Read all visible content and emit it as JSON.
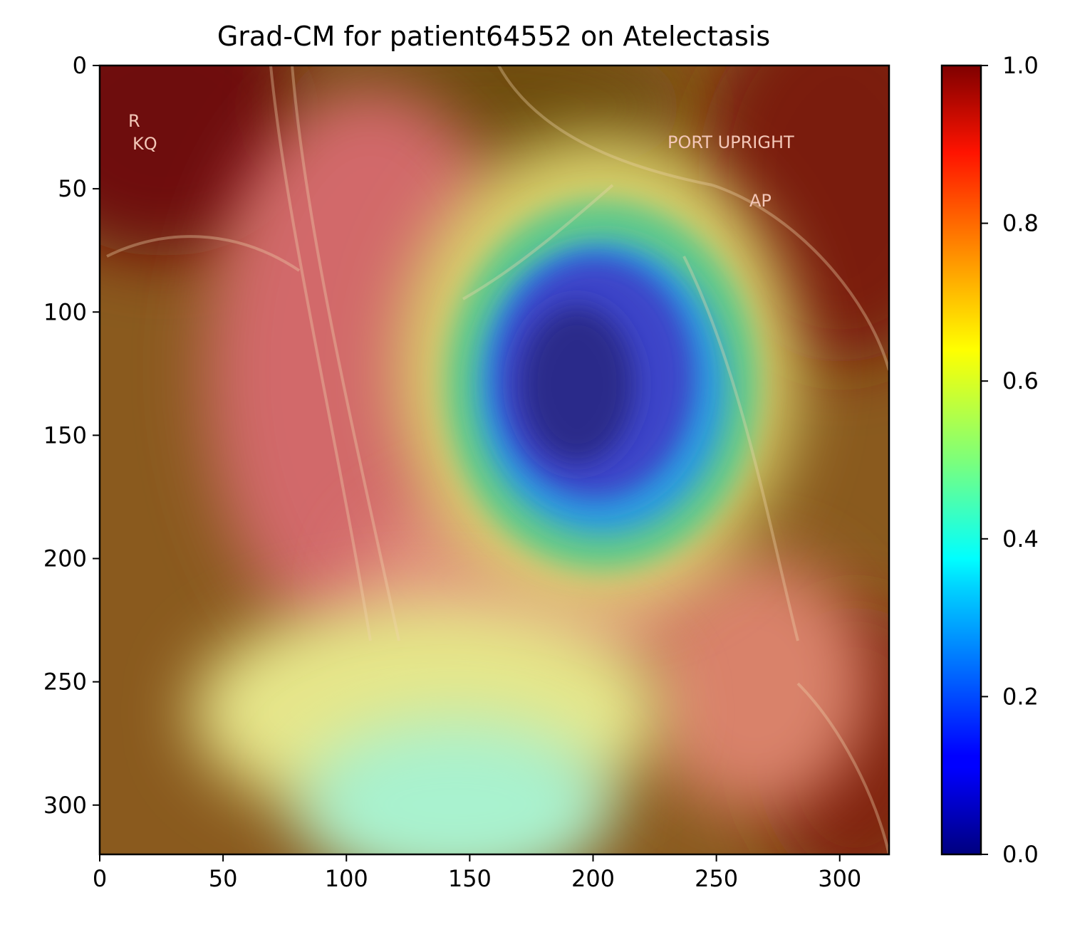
{
  "chart_data": {
    "type": "heatmap",
    "title": "Grad-CM for patient64552 on Atelectasis",
    "xlabel": "",
    "ylabel": "",
    "xlim": [
      0,
      320
    ],
    "ylim": [
      320,
      0
    ],
    "x_ticks": [
      "0",
      "50",
      "100",
      "150",
      "200",
      "250",
      "300"
    ],
    "y_ticks": [
      "0",
      "50",
      "100",
      "150",
      "200",
      "250",
      "300"
    ],
    "colorbar": {
      "colormap": "jet",
      "range": [
        0.0,
        1.0
      ],
      "ticks": [
        "0.0",
        "0.2",
        "0.4",
        "0.6",
        "0.8",
        "1.0"
      ]
    },
    "image_annotations": {
      "marker_letter": "R",
      "marker_sub": "KQ",
      "port_label": "PORT UPRIGHT",
      "view_label": "AP"
    },
    "activation_regions": [
      {
        "description": "low activation (blue)",
        "center": [
          185,
          135
        ],
        "value": 0.1
      },
      {
        "description": "mid activation (cyan/green)",
        "center": [
          145,
          300
        ],
        "value": 0.45
      },
      {
        "description": "high activation (red)",
        "center": [
          15,
          20
        ],
        "value": 0.95
      }
    ]
  }
}
